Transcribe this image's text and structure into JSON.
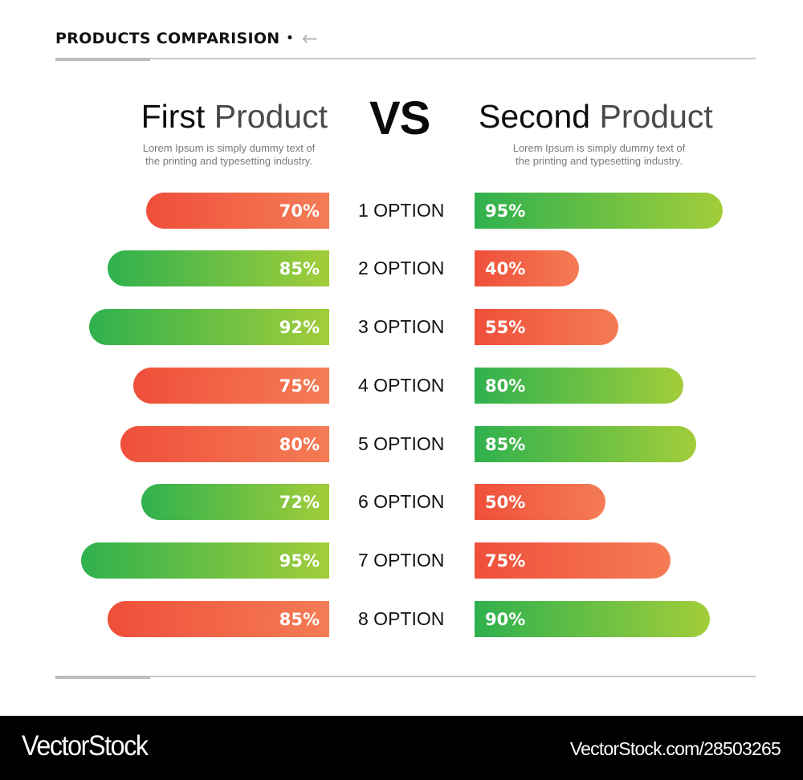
{
  "header": {
    "title": "PRODUCTS COMPARISION",
    "dot": "•",
    "arrow_icon": "←"
  },
  "vs_label": "VS",
  "products": {
    "first": {
      "title_word1": "First",
      "title_word2": "Product",
      "description_line1": "Lorem Ipsum is simply dummy text of",
      "description_line2": "the printing and typesetting industry."
    },
    "second": {
      "title_word1": "Second",
      "title_word2": "Product",
      "description_line1": "Lorem Ipsum is simply dummy text of",
      "description_line2": "the printing and typesetting industry."
    }
  },
  "colors": {
    "red_start": "#ef4f3a",
    "red_end": "#f47c55",
    "green_start": "#2fb14e",
    "green_end": "#a2cd3a",
    "rule": "#c8c8c8"
  },
  "rows": [
    {
      "label": "1 OPTION",
      "first": {
        "value": 70,
        "text": "70%",
        "color": "red"
      },
      "second": {
        "value": 95,
        "text": "95%",
        "color": "green"
      }
    },
    {
      "label": "2 OPTION",
      "first": {
        "value": 85,
        "text": "85%",
        "color": "green"
      },
      "second": {
        "value": 40,
        "text": "40%",
        "color": "red"
      }
    },
    {
      "label": "3 OPTION",
      "first": {
        "value": 92,
        "text": "92%",
        "color": "green"
      },
      "second": {
        "value": 55,
        "text": "55%",
        "color": "red"
      }
    },
    {
      "label": "4 OPTION",
      "first": {
        "value": 75,
        "text": "75%",
        "color": "red"
      },
      "second": {
        "value": 80,
        "text": "80%",
        "color": "green"
      }
    },
    {
      "label": "5 OPTION",
      "first": {
        "value": 80,
        "text": "80%",
        "color": "red"
      },
      "second": {
        "value": 85,
        "text": "85%",
        "color": "green"
      }
    },
    {
      "label": "6 OPTION",
      "first": {
        "value": 72,
        "text": "72%",
        "color": "green"
      },
      "second": {
        "value": 50,
        "text": "50%",
        "color": "red"
      }
    },
    {
      "label": "7 OPTION",
      "first": {
        "value": 95,
        "text": "95%",
        "color": "green"
      },
      "second": {
        "value": 75,
        "text": "75%",
        "color": "red"
      }
    },
    {
      "label": "8 OPTION",
      "first": {
        "value": 85,
        "text": "85%",
        "color": "red"
      },
      "second": {
        "value": 90,
        "text": "90%",
        "color": "green"
      }
    }
  ],
  "footer": {
    "brand": "VectorStock",
    "image_id": "VectorStock.com/28503265"
  },
  "chart_data": {
    "type": "bar",
    "orientation": "horizontal-diverging",
    "title": "PRODUCTS COMPARISION",
    "categories": [
      "1 OPTION",
      "2 OPTION",
      "3 OPTION",
      "4 OPTION",
      "5 OPTION",
      "6 OPTION",
      "7 OPTION",
      "8 OPTION"
    ],
    "series": [
      {
        "name": "First Product",
        "values": [
          70,
          85,
          92,
          75,
          80,
          72,
          95,
          85
        ],
        "bar_colors": [
          "red",
          "green",
          "green",
          "red",
          "red",
          "green",
          "green",
          "red"
        ],
        "direction": "left"
      },
      {
        "name": "Second Product",
        "values": [
          95,
          40,
          55,
          80,
          85,
          50,
          75,
          90
        ],
        "bar_colors": [
          "green",
          "red",
          "red",
          "green",
          "green",
          "red",
          "red",
          "green"
        ],
        "direction": "right"
      }
    ],
    "unit": "%",
    "center_label": "VS",
    "xlabel": "",
    "ylabel": "",
    "grid": false,
    "legend": "none (product titles above each side)"
  }
}
